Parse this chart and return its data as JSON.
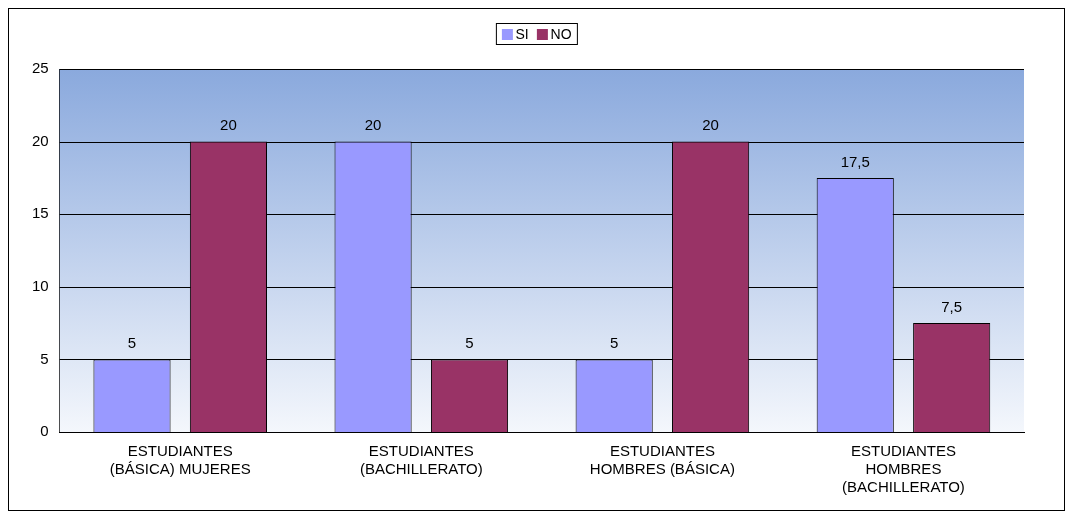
{
  "chart_data": {
    "type": "bar",
    "categories": [
      "ESTUDIANTES (BÁSICA) MUJERES",
      "ESTUDIANTES (BACHILLERATO)",
      "ESTUDIANTES HOMBRES (BÁSICA)",
      "ESTUDIANTES HOMBRES (BACHILLERATO)"
    ],
    "series": [
      {
        "name": "SI",
        "color": "#9999ff",
        "values": [
          5,
          20,
          5,
          17.5
        ],
        "value_labels": [
          "5",
          "20",
          "5",
          "17,5"
        ]
      },
      {
        "name": "NO",
        "color": "#993366",
        "values": [
          20,
          5,
          20,
          7.5
        ],
        "value_labels": [
          "20",
          "5",
          "20",
          "7,5"
        ]
      }
    ],
    "ylim": [
      0,
      25
    ],
    "yticks": [
      0,
      5,
      10,
      15,
      20,
      25
    ],
    "grid": "y",
    "legend": "top"
  }
}
